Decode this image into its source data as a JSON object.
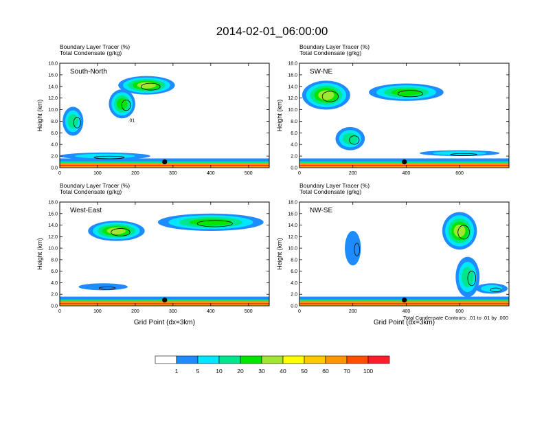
{
  "title": "2014-02-01_06:00:00",
  "color_bar": {
    "colors": [
      "#ffffff",
      "#1e8cff",
      "#00e6ff",
      "#00e68c",
      "#00e600",
      "#a0e632",
      "#ffff00",
      "#ffc800",
      "#ff9600",
      "#ff5000",
      "#ff1e28"
    ],
    "labels": [
      "1",
      "5",
      "10",
      "20",
      "30",
      "40",
      "50",
      "60",
      "70",
      "100"
    ]
  },
  "footnote": "Total Condensate Contours: .01 to .01 by .000",
  "chart_data": [
    {
      "type": "heatmap",
      "id": "panel-south-north",
      "section_label": "South-North",
      "field_title_1": "Boundary Layer Tracer   (%)",
      "field_title_2": "Total Condensate   (g/kg)",
      "ylabel": "Height (km)",
      "xlabel": "",
      "xlim": [
        0,
        555
      ],
      "ylim": [
        0,
        18
      ],
      "x_ticks": [
        0,
        100,
        200,
        300,
        400,
        500
      ],
      "y_ticks": [
        "0.0",
        "2.0",
        "4.0",
        "6.0",
        "8.0",
        "10.0",
        "12.0",
        "14.0",
        "16.0",
        "18.0"
      ],
      "marker": {
        "x": 278,
        "y": 1.0
      },
      "contour_label": ".01",
      "plumes": [
        {
          "x": 230,
          "y": 14.2,
          "w": 150,
          "h": 3.2,
          "level": 5
        },
        {
          "x": 165,
          "y": 11.0,
          "w": 70,
          "h": 5.0,
          "level": 4
        },
        {
          "x": 35,
          "y": 8.0,
          "w": 55,
          "h": 5.0,
          "level": 3
        },
        {
          "x": 120,
          "y": 2.0,
          "w": 240,
          "h": 1.2,
          "level": 2
        }
      ]
    },
    {
      "type": "heatmap",
      "id": "panel-sw-ne",
      "section_label": "SW-NE",
      "field_title_1": "Boundary Layer Tracer   (%)",
      "field_title_2": "Total Condensate   (g/kg)",
      "ylabel": "Height (km)",
      "xlabel": "",
      "xlim": [
        0,
        785
      ],
      "ylim": [
        0,
        18
      ],
      "x_ticks": [
        0,
        200,
        400,
        600
      ],
      "y_ticks": [
        "0.0",
        "2.0",
        "4.0",
        "6.0",
        "8.0",
        "10.0",
        "12.0",
        "14.0",
        "16.0",
        "18.0"
      ],
      "marker": {
        "x": 393,
        "y": 1.0
      },
      "plumes": [
        {
          "x": 100,
          "y": 12.5,
          "w": 180,
          "h": 5.0,
          "level": 5
        },
        {
          "x": 400,
          "y": 13.0,
          "w": 280,
          "h": 3.0,
          "level": 4
        },
        {
          "x": 190,
          "y": 5.0,
          "w": 110,
          "h": 4.0,
          "level": 3
        },
        {
          "x": 600,
          "y": 2.5,
          "w": 300,
          "h": 1.0,
          "level": 2
        }
      ]
    },
    {
      "type": "heatmap",
      "id": "panel-west-east",
      "section_label": "West-East",
      "field_title_1": "Boundary Layer Tracer   (%)",
      "field_title_2": "Total Condensate   (g/kg)",
      "ylabel": "Height (km)",
      "xlabel": "Grid Point (dx=3km)",
      "xlim": [
        0,
        555
      ],
      "ylim": [
        0,
        18
      ],
      "x_ticks": [
        0,
        100,
        200,
        300,
        400,
        500
      ],
      "y_ticks": [
        "0.0",
        "2.0",
        "4.0",
        "6.0",
        "8.0",
        "10.0",
        "12.0",
        "14.0",
        "16.0",
        "18.0"
      ],
      "marker": {
        "x": 278,
        "y": 1.0
      },
      "plumes": [
        {
          "x": 150,
          "y": 13.0,
          "w": 150,
          "h": 3.5,
          "level": 5
        },
        {
          "x": 400,
          "y": 14.5,
          "w": 280,
          "h": 3.0,
          "level": 4
        },
        {
          "x": 115,
          "y": 3.3,
          "w": 130,
          "h": 1.2,
          "level": 1
        }
      ]
    },
    {
      "type": "heatmap",
      "id": "panel-nw-se",
      "section_label": "NW-SE",
      "field_title_1": "Boundary Layer Tracer   (%)",
      "field_title_2": "Total Condensate   (g/kg)",
      "ylabel": "Height (km)",
      "xlabel": "Grid Point (dx=3km)",
      "xlim": [
        0,
        785
      ],
      "ylim": [
        0,
        18
      ],
      "x_ticks": [
        0,
        200,
        400,
        600
      ],
      "y_ticks": [
        "0.0",
        "2.0",
        "4.0",
        "6.0",
        "8.0",
        "10.0",
        "12.0",
        "14.0",
        "16.0",
        "18.0"
      ],
      "marker": {
        "x": 393,
        "y": 1.0
      },
      "plumes": [
        {
          "x": 600,
          "y": 13.0,
          "w": 130,
          "h": 6.5,
          "level": 5
        },
        {
          "x": 630,
          "y": 5.0,
          "w": 90,
          "h": 7.0,
          "level": 3
        },
        {
          "x": 200,
          "y": 10.0,
          "w": 60,
          "h": 6.0,
          "level": 1
        },
        {
          "x": 720,
          "y": 3.0,
          "w": 120,
          "h": 1.8,
          "level": 2
        }
      ]
    }
  ]
}
